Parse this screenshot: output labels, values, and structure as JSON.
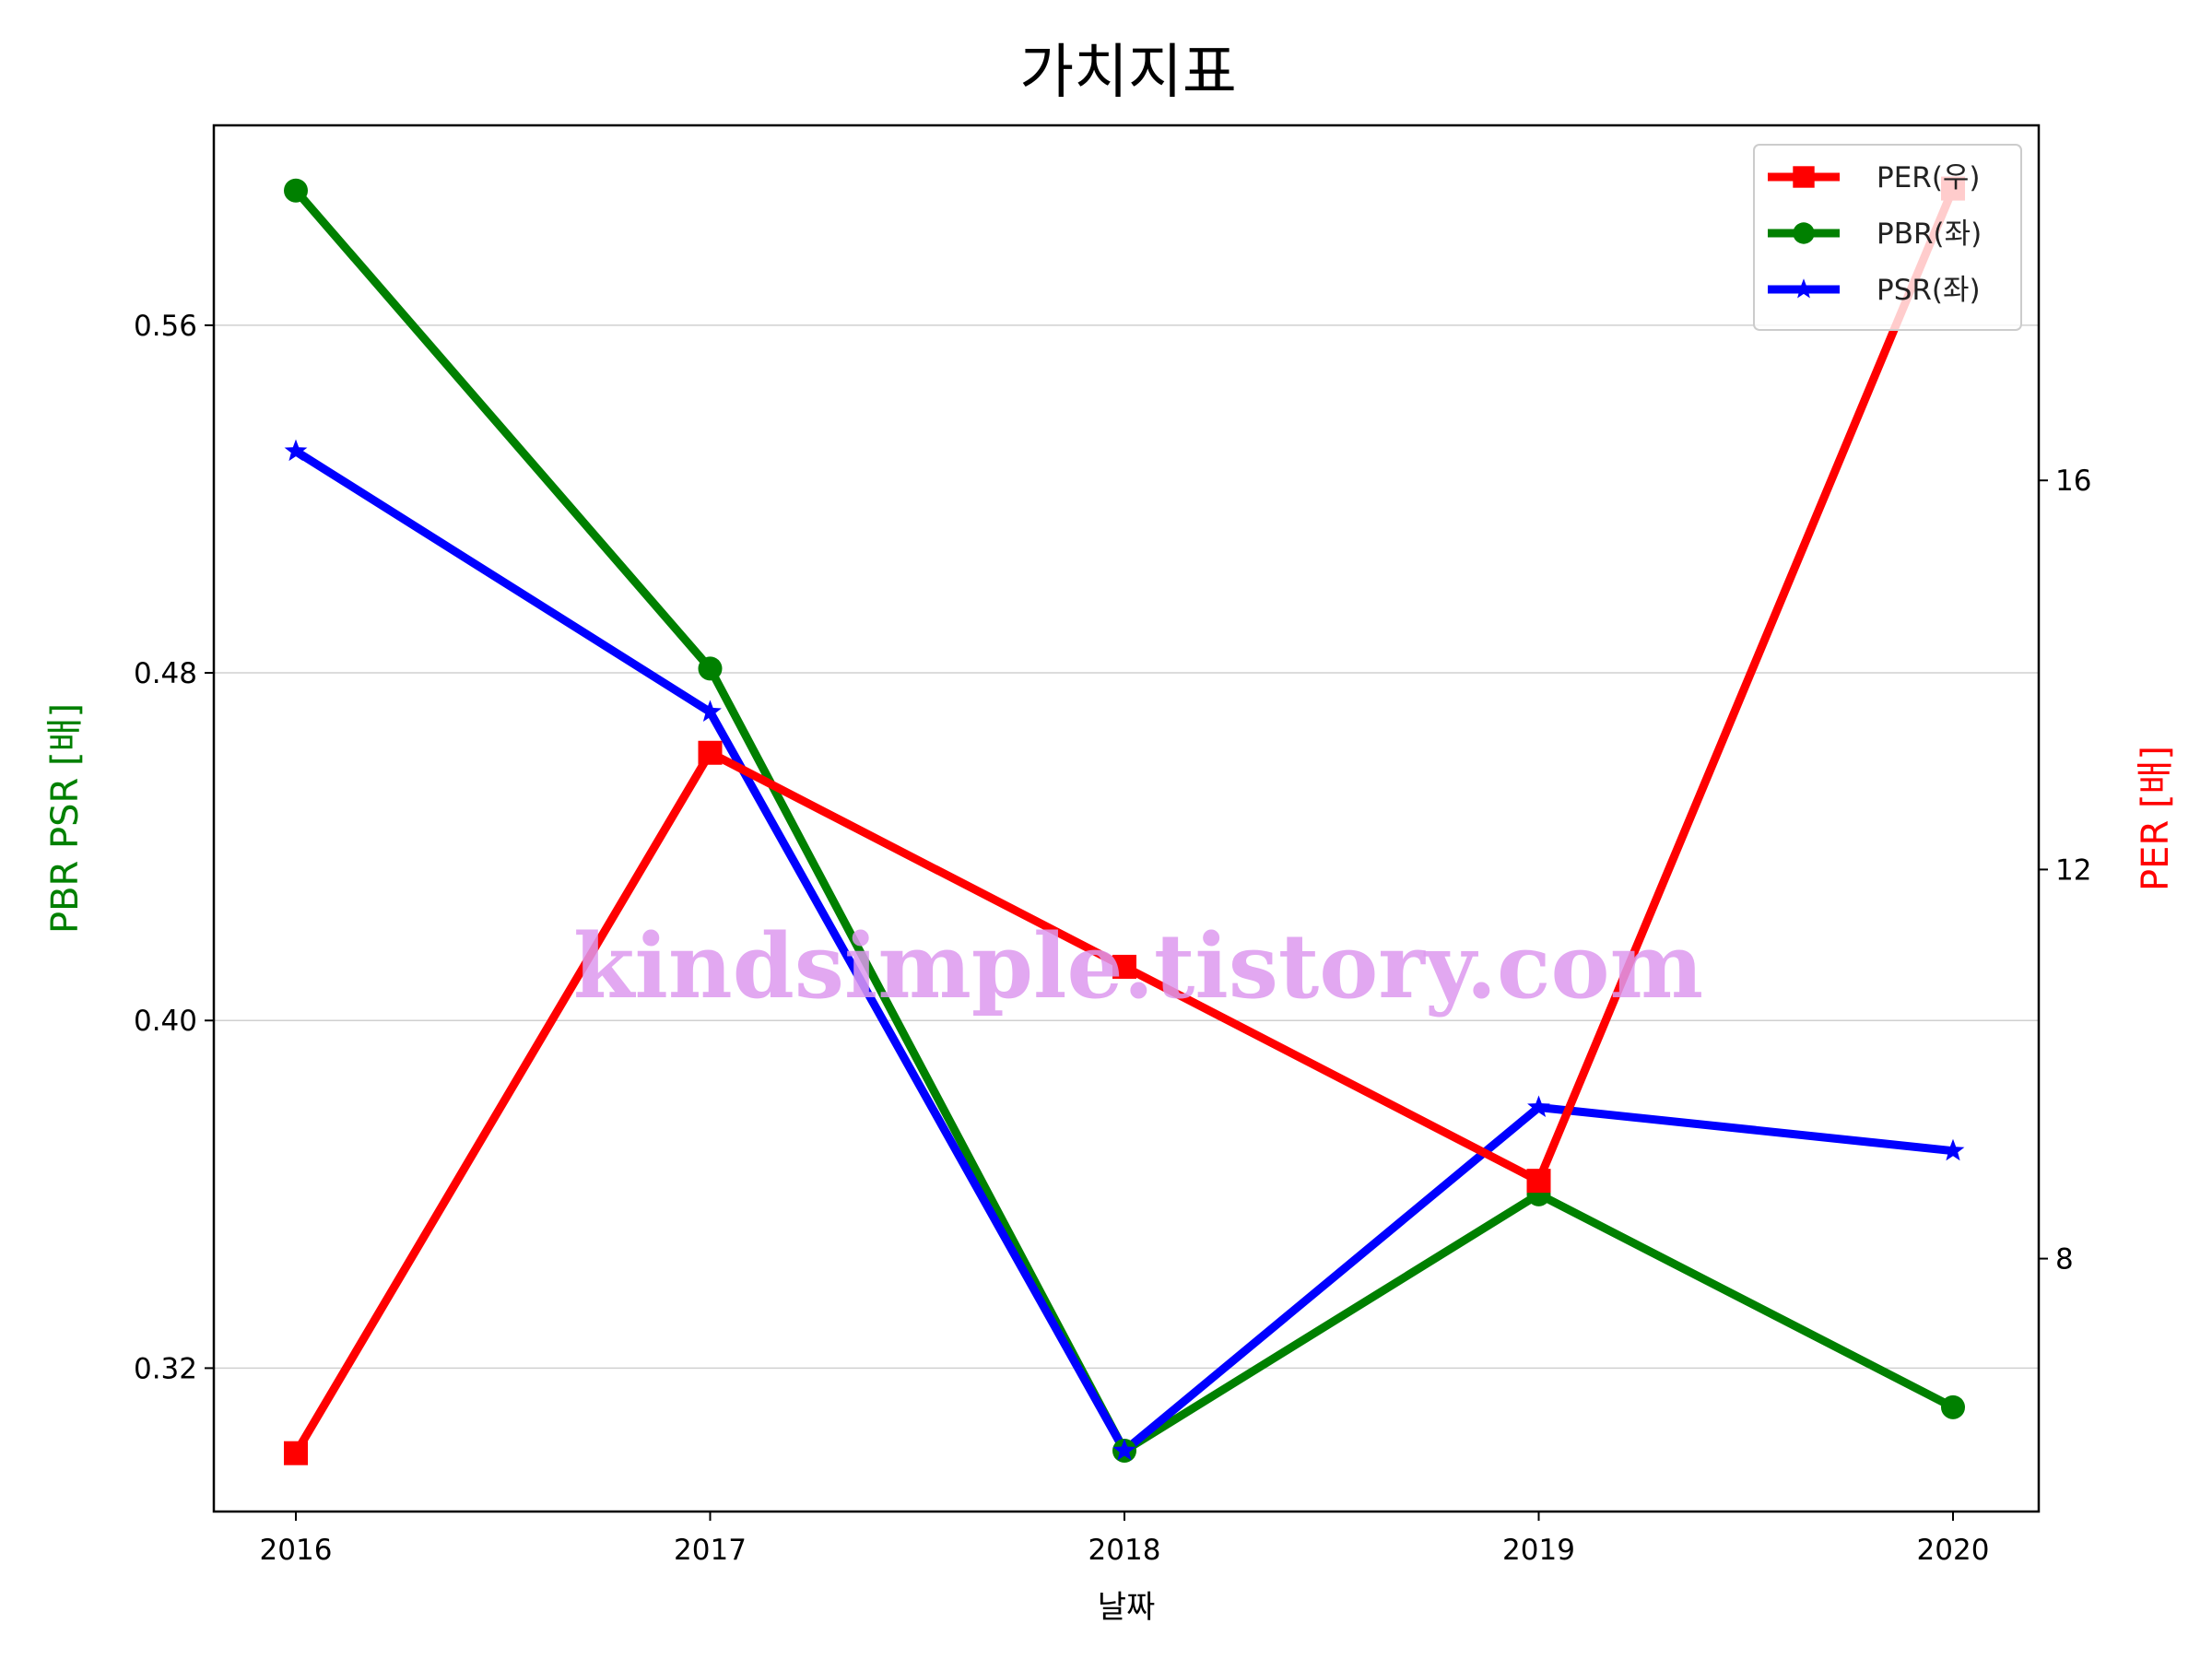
{
  "chart_data": {
    "type": "line",
    "title": "가치지표",
    "xlabel": "날짜",
    "ylabel_left": "PBR PSR [배]",
    "ylabel_right": "PER [배]",
    "categories": [
      "2016",
      "2017",
      "2018",
      "2019",
      "2020"
    ],
    "left_axis": {
      "range": [
        0.287,
        0.606
      ],
      "ticks": [
        0.32,
        0.4,
        0.48,
        0.56
      ],
      "tick_labels": [
        "0.32",
        "0.40",
        "0.48",
        "0.56"
      ],
      "grid": true
    },
    "right_axis": {
      "range": [
        5.4,
        19.65
      ],
      "ticks": [
        8,
        12,
        16
      ],
      "tick_labels": [
        "8",
        "12",
        "16"
      ]
    },
    "series": [
      {
        "name": "PER(우)",
        "axis": "right",
        "color": "#ff0000",
        "marker": "square",
        "values": [
          6.0,
          13.2,
          11.0,
          8.8,
          19.0
        ]
      },
      {
        "name": "PBR(좌)",
        "axis": "left",
        "color": "#008000",
        "marker": "circle",
        "values": [
          0.591,
          0.481,
          0.301,
          0.36,
          0.311
        ]
      },
      {
        "name": "PSR(좌)",
        "axis": "left",
        "color": "#0000ff",
        "marker": "star",
        "values": [
          0.531,
          0.471,
          0.301,
          0.38,
          0.37
        ]
      }
    ],
    "legend_position": "top-right",
    "watermark": "kindsimple.tistory.com"
  }
}
